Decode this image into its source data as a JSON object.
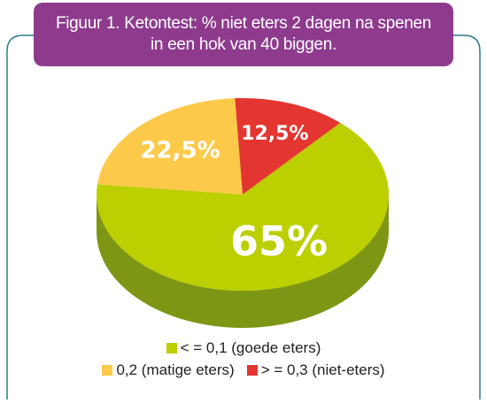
{
  "title": {
    "line1": "Figuur 1. Ketontest: % niet eters 2 dagen na spenen",
    "line2": "in een hok van 40 biggen."
  },
  "colors": {
    "frame": "#2b7c8a",
    "title_bg": "#8e3b8e",
    "good": "#bccf00",
    "good_side": "#7d9714",
    "moderate": "#fdc94a",
    "moderate_side": "#d9a238",
    "non": "#e43631",
    "non_side": "#b0231f"
  },
  "chart_data": {
    "type": "pie",
    "slices": [
      {
        "legend": "< = 0,1 (goede eters)",
        "value": 65,
        "label": "65%",
        "color": "#bccf00"
      },
      {
        "legend": "0,2 (matige eters)",
        "value": 22.5,
        "label": "22,5%",
        "color": "#fdc94a"
      },
      {
        "legend": "> = 0,3 (niet-eters)",
        "value": 12.5,
        "label": "12,5%",
        "color": "#e43631"
      }
    ],
    "legend_placement": "bottom",
    "style": "3d"
  }
}
